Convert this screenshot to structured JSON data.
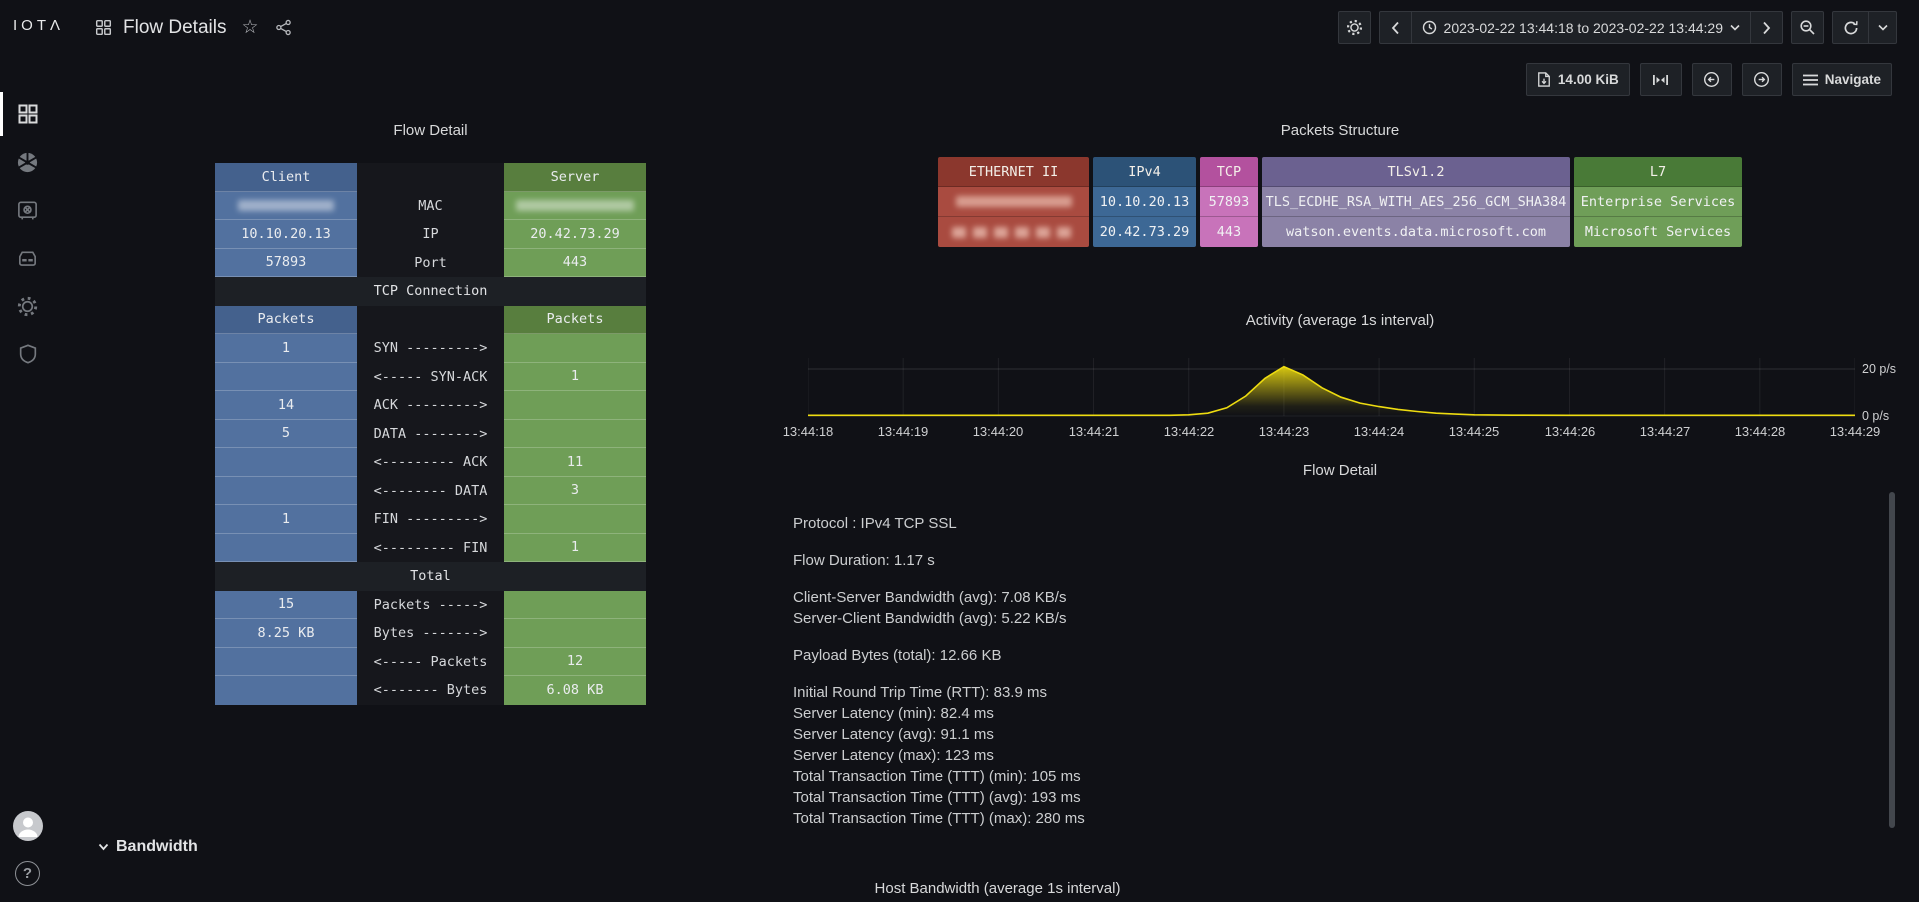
{
  "brand": {
    "logo_text": "IOTΛ"
  },
  "topnav": {
    "title": "Flow Details",
    "time_range": "2023-02-22 13:44:18 to 2023-02-22 13:44:29"
  },
  "toolbar": {
    "size_label": "14.00 KiB",
    "navigate_label": "Navigate"
  },
  "flow_table": {
    "title": "Flow Detail",
    "headers": {
      "client": "Client",
      "server": "Server",
      "packets_client": "Packets",
      "packets_server": "Packets"
    },
    "bands": {
      "tcp": "TCP Connection",
      "total": "Total"
    },
    "id_rows": [
      {
        "client": "",
        "label": "MAC",
        "server": "",
        "redacted": true
      },
      {
        "client": "10.10.20.13",
        "label": "IP",
        "server": "20.42.73.29"
      },
      {
        "client": "57893",
        "label": "Port",
        "server": "443"
      }
    ],
    "tcp_rows": [
      {
        "client": "1",
        "label": "SYN --------->",
        "server": ""
      },
      {
        "client": "",
        "label": "<----- SYN-ACK",
        "server": "1"
      },
      {
        "client": "14",
        "label": "ACK --------->",
        "server": ""
      },
      {
        "client": "5",
        "label": "DATA -------->",
        "server": ""
      },
      {
        "client": "",
        "label": "<--------- ACK",
        "server": "11"
      },
      {
        "client": "",
        "label": "<-------- DATA",
        "server": "3"
      },
      {
        "client": "1",
        "label": "FIN --------->",
        "server": ""
      },
      {
        "client": "",
        "label": "<--------- FIN",
        "server": "1"
      }
    ],
    "total_rows": [
      {
        "client": "15",
        "label": "Packets ----->",
        "server": ""
      },
      {
        "client": "8.25 KB",
        "label": "Bytes ------->",
        "server": ""
      },
      {
        "client": "",
        "label": "<----- Packets",
        "server": "12"
      },
      {
        "client": "",
        "label": "<------- Bytes",
        "server": "6.08 KB"
      }
    ],
    "colors": {
      "client": "#52719f",
      "client_header": "#44618d",
      "server": "#6f9e57",
      "server_header": "#587e3e"
    }
  },
  "packets_structure": {
    "title": "Packets Structure",
    "layers": [
      {
        "name": "ETHERNET II",
        "rows": [
          "",
          ""
        ],
        "redacted": true,
        "header_color": "#8b372d",
        "row_color": "#a94b40"
      },
      {
        "name": "IPv4",
        "rows": [
          "10.10.20.13",
          "20.42.73.29"
        ],
        "header_color": "#2c5277",
        "row_color": "#3d6895"
      },
      {
        "name": "TCP",
        "rows": [
          "57893",
          "443"
        ],
        "header_color": "#b3519e",
        "row_color": "#c873ba"
      },
      {
        "name": "TLSv1.2",
        "rows": [
          "TLS_ECDHE_RSA_WITH_AES_256_GCM_SHA384",
          "watson.events.data.microsoft.com"
        ],
        "header_color": "#6b6190",
        "row_color": "#8b82a6"
      },
      {
        "name": "L7",
        "rows": [
          "Enterprise Services",
          "Microsoft Services"
        ],
        "header_color": "#497a37",
        "row_color": "#6f9e58"
      }
    ]
  },
  "chart_data": {
    "type": "area",
    "title": "Activity (average 1s interval)",
    "x_labels": [
      "13:44:18",
      "13:44:19",
      "13:44:20",
      "13:44:21",
      "13:44:22",
      "13:44:23",
      "13:44:24",
      "13:44:25",
      "13:44:26",
      "13:44:27",
      "13:44:28",
      "13:44:29"
    ],
    "y_labels": [
      "20 p/s",
      "0 p/s"
    ],
    "ylim": [
      0,
      22
    ],
    "gridline_value": 20,
    "legend": "none",
    "series": [
      {
        "name": "packets-per-second",
        "color": "#eedc10",
        "points": [
          [
            0,
            0.3
          ],
          [
            1,
            0.3
          ],
          [
            2,
            0.3
          ],
          [
            3,
            0.3
          ],
          [
            3.8,
            0.3
          ],
          [
            4.0,
            0.5
          ],
          [
            4.2,
            1.2
          ],
          [
            4.4,
            3.5
          ],
          [
            4.6,
            8.5
          ],
          [
            4.8,
            16
          ],
          [
            5.0,
            21
          ],
          [
            5.2,
            17.5
          ],
          [
            5.4,
            12
          ],
          [
            5.6,
            8
          ],
          [
            5.8,
            5.5
          ],
          [
            6.0,
            4
          ],
          [
            6.2,
            2.8
          ],
          [
            6.4,
            1.9
          ],
          [
            6.6,
            1.2
          ],
          [
            6.8,
            0.8
          ],
          [
            7.0,
            0.5
          ],
          [
            7.4,
            0.35
          ],
          [
            8,
            0.3
          ],
          [
            9,
            0.3
          ],
          [
            10,
            0.3
          ],
          [
            11,
            0.3
          ]
        ]
      }
    ]
  },
  "flow_text": {
    "title": "Flow Detail",
    "protocol": "Protocol : IPv4 TCP SSL",
    "duration": "Flow Duration: 1.17 s",
    "bandwidth": [
      "Client-Server Bandwidth (avg): 7.08 KB/s",
      "Server-Client Bandwidth (avg): 5.22 KB/s"
    ],
    "payload": "Payload Bytes (total): 12.66 KB",
    "latency": [
      "Initial Round Trip Time (RTT): 83.9 ms",
      "Server Latency (min): 82.4 ms",
      "Server Latency (avg): 91.1 ms",
      "Server Latency (max): 123 ms",
      "Total Transaction Time (TTT) (min): 105 ms",
      "Total Transaction Time (TTT) (avg): 193 ms",
      "Total Transaction Time (TTT) (max): 280 ms"
    ]
  },
  "bandwidth_section": {
    "header": "Bandwidth",
    "panel_title": "Host Bandwidth (average 1s interval)"
  }
}
